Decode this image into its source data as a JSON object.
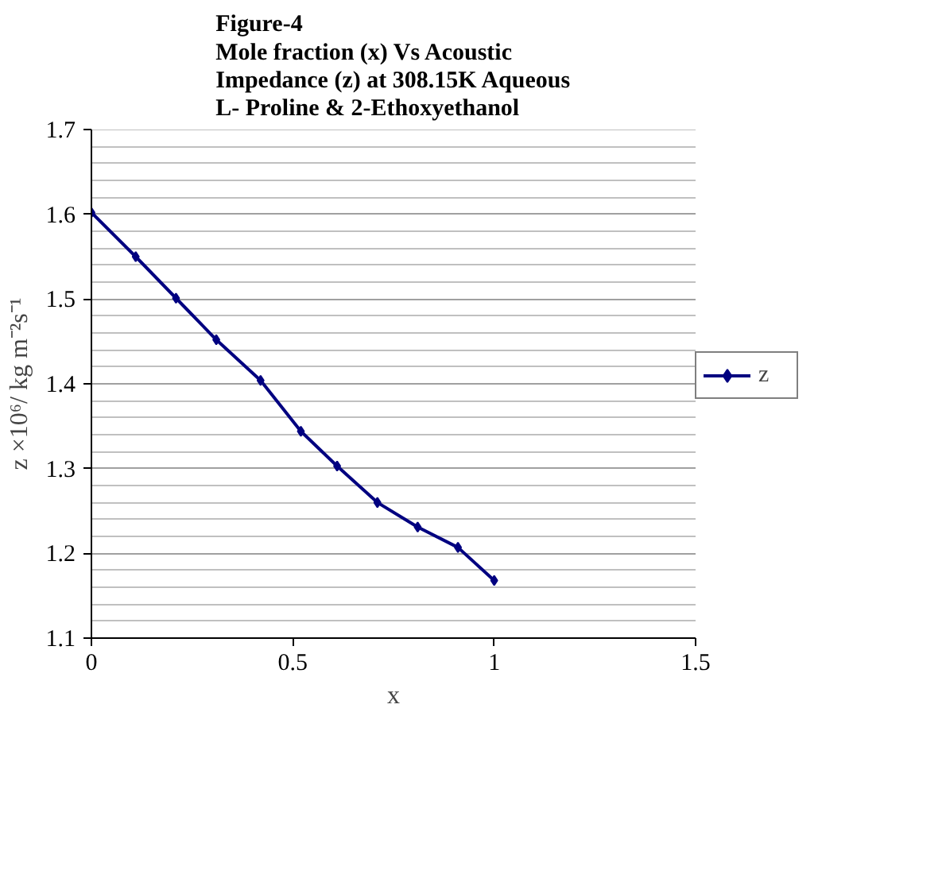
{
  "chart_data": {
    "type": "line",
    "title": "Figure-4\nMole fraction (x) Vs Acoustic\nImpedance (z) at 308.15K Aqueous\nL- Proline & 2-Ethoxyethanol",
    "xlabel": "x",
    "ylabel": "z ×10⁶/ kg m⁻²s⁻¹",
    "x": [
      0,
      0.11,
      0.21,
      0.31,
      0.42,
      0.52,
      0.61,
      0.71,
      0.81,
      0.91,
      1.0
    ],
    "series": [
      {
        "name": "z",
        "color": "#000080",
        "values": [
          1.602,
          1.55,
          1.501,
          1.452,
          1.404,
          1.344,
          1.303,
          1.26,
          1.231,
          1.207,
          1.168
        ]
      }
    ],
    "xlim": [
      0,
      1.5
    ],
    "xticks": [
      0,
      0.5,
      1,
      1.5
    ],
    "ylim": [
      1.1,
      1.7
    ],
    "yticks": [
      1.1,
      1.2,
      1.3,
      1.4,
      1.5,
      1.6,
      1.7
    ],
    "grid": "y",
    "legend": "right",
    "marker": "diamond",
    "line_style": "solid"
  }
}
